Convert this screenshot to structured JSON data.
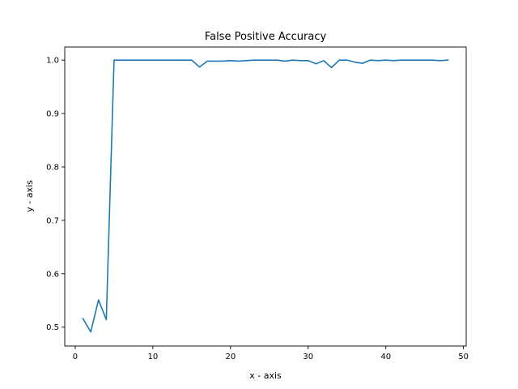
{
  "chart_data": {
    "type": "line",
    "title": "False Positive Accuracy",
    "xlabel": "x - axis",
    "ylabel": "y - axis",
    "xlim": [
      -1.35,
      50.35
    ],
    "ylim": [
      0.4646,
      1.0245
    ],
    "xticks": [
      0,
      10,
      20,
      30,
      40,
      50
    ],
    "yticks": [
      0.5,
      0.6,
      0.7,
      0.8,
      0.9,
      1.0
    ],
    "ytick_labels": [
      "0.5",
      "0.6",
      "0.7",
      "0.8",
      "0.9",
      "1.0"
    ],
    "grid": false,
    "series": [
      {
        "color": "#1f77b4",
        "x": [
          1,
          2,
          3,
          4,
          5,
          6,
          7,
          8,
          9,
          10,
          11,
          12,
          13,
          14,
          15,
          16,
          17,
          18,
          19,
          20,
          21,
          22,
          23,
          24,
          25,
          26,
          27,
          28,
          29,
          30,
          31,
          32,
          33,
          34,
          35,
          36,
          37,
          38,
          39,
          40,
          41,
          42,
          43,
          44,
          45,
          46,
          47,
          48
        ],
        "y": [
          0.516,
          0.491,
          0.551,
          0.514,
          1.0,
          1.0,
          1.0,
          1.0,
          1.0,
          1.0,
          1.0,
          1.0,
          1.0,
          1.0,
          1.0,
          0.987,
          0.998,
          0.998,
          0.998,
          0.999,
          0.998,
          0.999,
          1.0,
          1.0,
          1.0,
          1.0,
          0.998,
          1.0,
          0.999,
          0.999,
          0.993,
          0.999,
          0.986,
          1.0,
          1.0,
          0.996,
          0.994,
          1.0,
          0.999,
          1.0,
          0.999,
          1.0,
          1.0,
          1.0,
          1.0,
          1.0,
          0.999,
          1.0
        ]
      }
    ]
  }
}
